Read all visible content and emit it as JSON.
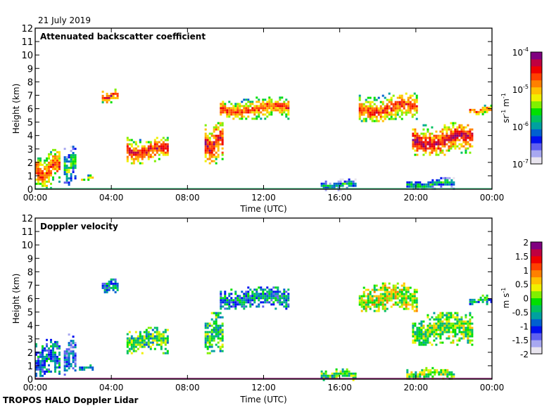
{
  "date_label": "21 July 2019",
  "footer_label": "TROPOS HALO Doppler Lidar",
  "chart_data": [
    {
      "type": "heatmap",
      "title": "Attenuated backscatter coefficient",
      "xlabel": "Time (UTC)",
      "ylabel": "Height (km)",
      "xlim_hours": [
        0,
        24
      ],
      "ylim": [
        0,
        12
      ],
      "x_ticks": [
        "00:00",
        "04:00",
        "08:00",
        "12:00",
        "16:00",
        "20:00",
        "00:00"
      ],
      "y_ticks": [
        "0",
        "1",
        "2",
        "3",
        "4",
        "5",
        "6",
        "7",
        "8",
        "9",
        "10",
        "11",
        "12"
      ],
      "colorbar": {
        "label_base": "sr",
        "label_exp1": "-1",
        "label_unit2": " m",
        "label_exp2": "-1",
        "scale": "log",
        "range": [
          1e-07,
          0.0001
        ],
        "ticks": [
          {
            "base": "10",
            "exp": "-4",
            "value": 0.0001
          },
          {
            "base": "10",
            "exp": "-5",
            "value": 1e-05
          },
          {
            "base": "10",
            "exp": "-6",
            "value": 1e-06
          },
          {
            "base": "10",
            "exp": "-7",
            "value": 1e-07
          }
        ],
        "colors": [
          "#e8e4ee",
          "#a8a8f0",
          "#6060f0",
          "#0010f0",
          "#0060d0",
          "#00a0a0",
          "#00c060",
          "#00e000",
          "#80f000",
          "#f0f000",
          "#ffc000",
          "#ff8000",
          "#ff4000",
          "#f00000",
          "#c00040",
          "#800080"
        ]
      },
      "features": [
        {
          "name": "low-cloud-morning",
          "t": [
            0.0,
            1.3
          ],
          "h": [
            0.1,
            3.0
          ],
          "level": 0.82
        },
        {
          "name": "cloud-1.8h",
          "t": [
            1.5,
            2.1
          ],
          "h": [
            0.3,
            3.4
          ],
          "level": 0.5
        },
        {
          "name": "patch-2.5h",
          "t": [
            2.3,
            3.0
          ],
          "h": [
            0.7,
            1.1
          ],
          "level": 0.72
        },
        {
          "name": "cirrus-3.5h",
          "t": [
            3.5,
            4.3
          ],
          "h": [
            6.5,
            7.5
          ],
          "level": 0.85
        },
        {
          "name": "mid-cloud-5-7h",
          "t": [
            4.8,
            7.0
          ],
          "h": [
            2.0,
            3.9
          ],
          "level": 0.9
        },
        {
          "name": "mid-cloud-9h",
          "t": [
            8.9,
            9.8
          ],
          "h": [
            1.9,
            5.0
          ],
          "level": 0.92
        },
        {
          "name": "cloud-10-13h",
          "t": [
            9.7,
            13.3
          ],
          "h": [
            5.2,
            6.9
          ],
          "level": 0.82
        },
        {
          "name": "boundary-layer-16h",
          "t": [
            15.0,
            16.8
          ],
          "h": [
            0.0,
            0.8
          ],
          "level": 0.4
        },
        {
          "name": "cloud-17-20h",
          "t": [
            17.0,
            20.0
          ],
          "h": [
            5.0,
            7.2
          ],
          "level": 0.82
        },
        {
          "name": "cloud-20-23h",
          "t": [
            19.8,
            23.0
          ],
          "h": [
            2.5,
            5.0
          ],
          "level": 0.92
        },
        {
          "name": "boundary-layer-20h",
          "t": [
            19.5,
            22.0
          ],
          "h": [
            0.0,
            0.9
          ],
          "level": 0.42
        },
        {
          "name": "cloud-23h",
          "t": [
            22.8,
            24.0
          ],
          "h": [
            5.6,
            6.3
          ],
          "level": 0.8
        }
      ]
    },
    {
      "type": "heatmap",
      "title": "Doppler velocity",
      "xlabel": "Time (UTC)",
      "ylabel": "Height (km)",
      "xlim_hours": [
        0,
        24
      ],
      "ylim": [
        0,
        12
      ],
      "x_ticks": [
        "00:00",
        "04:00",
        "08:00",
        "12:00",
        "16:00",
        "20:00",
        "00:00"
      ],
      "y_ticks": [
        "0",
        "1",
        "2",
        "3",
        "4",
        "5",
        "6",
        "7",
        "8",
        "9",
        "10",
        "11",
        "12"
      ],
      "colorbar": {
        "label_base": "m",
        "label_unit2": " s",
        "label_exp2": "-1",
        "scale": "linear",
        "range": [
          -2,
          2
        ],
        "ticks": [
          {
            "base": "2",
            "value": 2
          },
          {
            "base": "1.5",
            "value": 1.5
          },
          {
            "base": "1",
            "value": 1
          },
          {
            "base": "0.5",
            "value": 0.5
          },
          {
            "base": "0",
            "value": 0
          },
          {
            "base": "-0.5",
            "value": -0.5
          },
          {
            "base": "-1",
            "value": -1
          },
          {
            "base": "-1.5",
            "value": -1.5
          },
          {
            "base": "-2",
            "value": -2
          }
        ],
        "colors": [
          "#e8e4ee",
          "#a8a8f0",
          "#6060f0",
          "#0010f0",
          "#0060d0",
          "#00a0a0",
          "#00c060",
          "#00e000",
          "#80f000",
          "#f0f000",
          "#ffc000",
          "#ff8000",
          "#ff4000",
          "#f00000",
          "#c00040",
          "#800080"
        ]
      },
      "features": [
        {
          "name": "low-cloud-morning",
          "t": [
            0.0,
            1.3
          ],
          "h": [
            0.1,
            3.0
          ],
          "level": 0.3
        },
        {
          "name": "cloud-1.8h",
          "t": [
            1.5,
            2.1
          ],
          "h": [
            0.3,
            3.4
          ],
          "level": 0.2
        },
        {
          "name": "patch-2.5h",
          "t": [
            2.3,
            3.0
          ],
          "h": [
            0.7,
            1.1
          ],
          "level": 0.38
        },
        {
          "name": "cirrus-3.5h",
          "t": [
            3.5,
            4.3
          ],
          "h": [
            6.5,
            7.5
          ],
          "level": 0.28
        },
        {
          "name": "mid-cloud-5-7h",
          "t": [
            4.8,
            7.0
          ],
          "h": [
            2.0,
            3.9
          ],
          "level": 0.45
        },
        {
          "name": "mid-cloud-9h",
          "t": [
            8.9,
            9.8
          ],
          "h": [
            1.9,
            5.0
          ],
          "level": 0.42
        },
        {
          "name": "cloud-10-13h",
          "t": [
            9.7,
            13.3
          ],
          "h": [
            5.2,
            6.9
          ],
          "level": 0.3
        },
        {
          "name": "boundary-layer-16h",
          "t": [
            15.0,
            16.8
          ],
          "h": [
            0.0,
            0.8
          ],
          "level": 0.45
        },
        {
          "name": "cloud-17-20h",
          "t": [
            17.0,
            20.0
          ],
          "h": [
            5.0,
            7.2
          ],
          "level": 0.55
        },
        {
          "name": "cloud-20-23h",
          "t": [
            19.8,
            23.0
          ],
          "h": [
            2.5,
            5.0
          ],
          "level": 0.5
        },
        {
          "name": "boundary-layer-20h",
          "t": [
            19.5,
            22.0
          ],
          "h": [
            0.0,
            0.9
          ],
          "level": 0.5
        },
        {
          "name": "cloud-23h",
          "t": [
            22.8,
            24.0
          ],
          "h": [
            5.6,
            6.3
          ],
          "level": 0.35
        }
      ]
    }
  ]
}
